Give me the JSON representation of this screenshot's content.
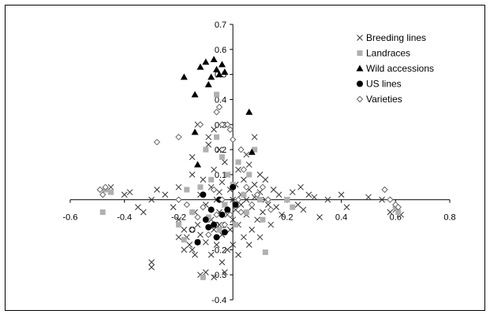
{
  "chart_data": {
    "type": "scatter",
    "title": "",
    "xlabel": "",
    "ylabel": "",
    "xlim": [
      -0.6,
      0.8
    ],
    "ylim": [
      -0.4,
      0.7
    ],
    "x_ticks": [
      -0.6,
      -0.4,
      -0.2,
      0,
      0.2,
      0.4,
      0.6,
      0.8
    ],
    "x_tick_labels": [
      "-0.6",
      "-0.4",
      "-0.2",
      "",
      "0.2",
      "0.4",
      "0.6",
      "0.8"
    ],
    "y_ticks": [
      -0.4,
      -0.3,
      -0.2,
      -0.1,
      0,
      0.1,
      0.2,
      0.3,
      0.4,
      0.5,
      0.6,
      0.7
    ],
    "y_tick_labels": [
      "-0.4",
      "-0.3",
      "-0.2",
      "-0.1",
      "",
      "0.1",
      "0.2",
      "0.3",
      "0.4",
      "0.5",
      "0.6",
      "0.7"
    ],
    "grid": false,
    "legend_position": "top-right",
    "series": [
      {
        "name": "Breeding lines",
        "marker": "x",
        "color": "#333333",
        "points": [
          [
            -0.45,
            0.05
          ],
          [
            -0.4,
            0.02
          ],
          [
            -0.38,
            0.03
          ],
          [
            -0.35,
            -0.03
          ],
          [
            -0.33,
            -0.05
          ],
          [
            -0.3,
            0.0
          ],
          [
            -0.28,
            0.04
          ],
          [
            -0.3,
            -0.25
          ],
          [
            -0.3,
            -0.27
          ],
          [
            -0.25,
            0.02
          ],
          [
            -0.22,
            -0.03
          ],
          [
            -0.2,
            0.05
          ],
          [
            -0.2,
            -0.08
          ],
          [
            -0.18,
            -0.12
          ],
          [
            -0.17,
            -0.15
          ],
          [
            -0.16,
            -0.18
          ],
          [
            -0.15,
            -0.2
          ],
          [
            -0.15,
            0.1
          ],
          [
            -0.15,
            0.17
          ],
          [
            -0.14,
            -0.05
          ],
          [
            -0.13,
            -0.1
          ],
          [
            -0.12,
            -0.14
          ],
          [
            -0.12,
            0.02
          ],
          [
            -0.11,
            0.08
          ],
          [
            -0.1,
            -0.02
          ],
          [
            -0.1,
            -0.17
          ],
          [
            -0.09,
            0.22
          ],
          [
            -0.09,
            0.25
          ],
          [
            -0.08,
            0.05
          ],
          [
            -0.08,
            -0.08
          ],
          [
            -0.07,
            -0.12
          ],
          [
            -0.07,
            0.12
          ],
          [
            -0.06,
            -0.18
          ],
          [
            -0.06,
            0.0
          ],
          [
            -0.05,
            0.03
          ],
          [
            -0.05,
            -0.05
          ],
          [
            -0.05,
            -0.1
          ],
          [
            -0.04,
            0.07
          ],
          [
            -0.04,
            -0.14
          ],
          [
            -0.03,
            -0.02
          ],
          [
            -0.03,
            0.15
          ],
          [
            -0.02,
            -0.06
          ],
          [
            -0.02,
            0.1
          ],
          [
            -0.02,
            -0.2
          ],
          [
            -0.01,
            0.04
          ],
          [
            -0.01,
            -0.12
          ],
          [
            0.0,
            0.0
          ],
          [
            0.0,
            -0.08
          ],
          [
            0.01,
            0.06
          ],
          [
            0.01,
            -0.04
          ],
          [
            0.02,
            0.12
          ],
          [
            0.02,
            -0.1
          ],
          [
            0.03,
            -0.02
          ],
          [
            0.03,
            0.02
          ],
          [
            0.04,
            -0.15
          ],
          [
            0.04,
            0.08
          ],
          [
            0.05,
            0.0
          ],
          [
            0.05,
            -0.06
          ],
          [
            0.06,
            0.04
          ],
          [
            0.06,
            0.14
          ],
          [
            0.07,
            -0.03
          ],
          [
            0.07,
            -0.12
          ],
          [
            0.08,
            0.06
          ],
          [
            0.08,
            0.01
          ],
          [
            0.09,
            -0.08
          ],
          [
            0.1,
            0.03
          ],
          [
            0.1,
            0.1
          ],
          [
            0.11,
            -0.05
          ],
          [
            0.12,
            0.0
          ],
          [
            0.12,
            0.08
          ],
          [
            0.13,
            -0.02
          ],
          [
            0.14,
            -0.1
          ],
          [
            0.15,
            0.04
          ],
          [
            0.16,
            -0.03
          ],
          [
            0.17,
            0.02
          ],
          [
            0.18,
            -0.06
          ],
          [
            0.2,
            0.0
          ],
          [
            0.22,
            0.03
          ],
          [
            0.24,
            -0.02
          ],
          [
            0.25,
            0.05
          ],
          [
            0.26,
            -0.04
          ],
          [
            0.28,
            0.02
          ],
          [
            0.3,
            0.01
          ],
          [
            0.32,
            -0.07
          ],
          [
            0.35,
            0.0
          ],
          [
            0.4,
            0.02
          ],
          [
            0.42,
            -0.03
          ],
          [
            0.5,
            0.01
          ],
          [
            0.55,
            0.0
          ],
          [
            0.58,
            -0.05
          ],
          [
            0.6,
            -0.04
          ],
          [
            0.62,
            -0.06
          ],
          [
            -0.12,
            -0.3
          ],
          [
            -0.1,
            -0.29
          ],
          [
            -0.07,
            -0.31
          ],
          [
            -0.13,
            0.3
          ],
          [
            -0.07,
            0.28
          ],
          [
            -0.05,
            0.2
          ],
          [
            0.05,
            0.18
          ],
          [
            0.08,
            0.25
          ],
          [
            -0.08,
            -0.22
          ],
          [
            -0.04,
            -0.25
          ],
          [
            0.0,
            -0.18
          ],
          [
            0.02,
            -0.22
          ],
          [
            0.06,
            -0.18
          ],
          [
            0.1,
            -0.15
          ],
          [
            -0.2,
            -0.15
          ],
          [
            -0.18,
            -0.2
          ],
          [
            -0.14,
            -0.22
          ],
          [
            -0.03,
            -0.29
          ]
        ]
      },
      {
        "name": "Landraces",
        "marker": "square",
        "color": "#b0b0b0",
        "points": [
          [
            -0.48,
            -0.05
          ],
          [
            -0.47,
            0.04
          ],
          [
            -0.45,
            0.03
          ],
          [
            -0.17,
            0.04
          ],
          [
            -0.15,
            -0.05
          ],
          [
            -0.13,
            -0.17
          ],
          [
            -0.12,
            0.05
          ],
          [
            -0.1,
            0.2
          ],
          [
            -0.09,
            -0.07
          ],
          [
            -0.08,
            0.08
          ],
          [
            -0.06,
            0.25
          ],
          [
            -0.06,
            0.42
          ],
          [
            -0.05,
            -0.12
          ],
          [
            -0.04,
            0.17
          ],
          [
            -0.03,
            -0.02
          ],
          [
            -0.02,
            0.1
          ],
          [
            0.0,
            0.06
          ],
          [
            0.01,
            -0.1
          ],
          [
            0.02,
            0.15
          ],
          [
            0.04,
            0.02
          ],
          [
            0.05,
            -0.05
          ],
          [
            0.06,
            0.1
          ],
          [
            0.08,
            0.2
          ],
          [
            0.1,
            0.0
          ],
          [
            0.11,
            -0.08
          ],
          [
            0.12,
            -0.21
          ],
          [
            0.2,
            0.0
          ],
          [
            0.22,
            -0.03
          ],
          [
            0.6,
            -0.03
          ],
          [
            0.61,
            -0.05
          ],
          [
            -0.11,
            -0.31
          ],
          [
            -0.2,
            -0.1
          ],
          [
            -0.18,
            -0.16
          ]
        ]
      },
      {
        "name": "Wild accessions",
        "marker": "triangle",
        "color": "#000000",
        "points": [
          [
            -0.18,
            0.49
          ],
          [
            -0.14,
            0.42
          ],
          [
            -0.12,
            0.53
          ],
          [
            -0.1,
            0.55
          ],
          [
            -0.09,
            0.46
          ],
          [
            -0.08,
            0.49
          ],
          [
            -0.07,
            0.56
          ],
          [
            -0.06,
            0.52
          ],
          [
            -0.05,
            0.5
          ],
          [
            -0.04,
            0.54
          ],
          [
            -0.03,
            0.51
          ],
          [
            -0.13,
            0.14
          ],
          [
            -0.14,
            0.27
          ],
          [
            0.06,
            0.35
          ],
          [
            0.07,
            0.19
          ]
        ]
      },
      {
        "name": "US lines",
        "marker": "circle",
        "color": "#000000",
        "points": [
          [
            -0.15,
            -0.12
          ],
          [
            -0.13,
            -0.17
          ],
          [
            -0.11,
            0.02
          ],
          [
            -0.1,
            -0.08
          ],
          [
            -0.09,
            -0.11
          ],
          [
            -0.08,
            -0.04
          ],
          [
            -0.07,
            -0.1
          ],
          [
            -0.06,
            -0.15
          ],
          [
            -0.05,
            0.0
          ],
          [
            -0.04,
            -0.06
          ],
          [
            -0.03,
            -0.13
          ],
          [
            -0.02,
            -0.04
          ],
          [
            0.0,
            0.05
          ],
          [
            0.01,
            -0.02
          ]
        ]
      },
      {
        "name": "Varieties",
        "marker": "diamond",
        "color": "#666666",
        "points": [
          [
            -0.49,
            0.04
          ],
          [
            -0.48,
            0.02
          ],
          [
            -0.47,
            0.05
          ],
          [
            -0.28,
            0.23
          ],
          [
            -0.2,
            0.25
          ],
          [
            -0.12,
            0.3
          ],
          [
            -0.06,
            0.35
          ],
          [
            -0.05,
            0.37
          ],
          [
            -0.04,
            0.3
          ],
          [
            -0.02,
            0.3
          ],
          [
            -0.01,
            0.28
          ],
          [
            0.0,
            0.24
          ],
          [
            0.03,
            0.2
          ],
          [
            0.04,
            0.12
          ],
          [
            -0.2,
            0.0
          ],
          [
            -0.17,
            -0.02
          ],
          [
            -0.15,
            -0.12
          ],
          [
            -0.13,
            -0.07
          ],
          [
            -0.11,
            -0.03
          ],
          [
            -0.09,
            -0.14
          ],
          [
            -0.07,
            0.04
          ],
          [
            -0.06,
            -0.06
          ],
          [
            -0.04,
            0.0
          ],
          [
            -0.03,
            -0.1
          ],
          [
            -0.01,
            -0.06
          ],
          [
            0.02,
            0.0
          ],
          [
            0.03,
            -0.05
          ],
          [
            0.05,
            0.05
          ],
          [
            0.07,
            -0.02
          ],
          [
            0.09,
            0.02
          ],
          [
            0.11,
            0.05
          ],
          [
            0.13,
            0.0
          ],
          [
            0.14,
            -0.04
          ],
          [
            0.56,
            0.04
          ],
          [
            0.58,
            0.0
          ],
          [
            0.6,
            -0.02
          ],
          [
            0.61,
            -0.03
          ]
        ]
      }
    ]
  }
}
